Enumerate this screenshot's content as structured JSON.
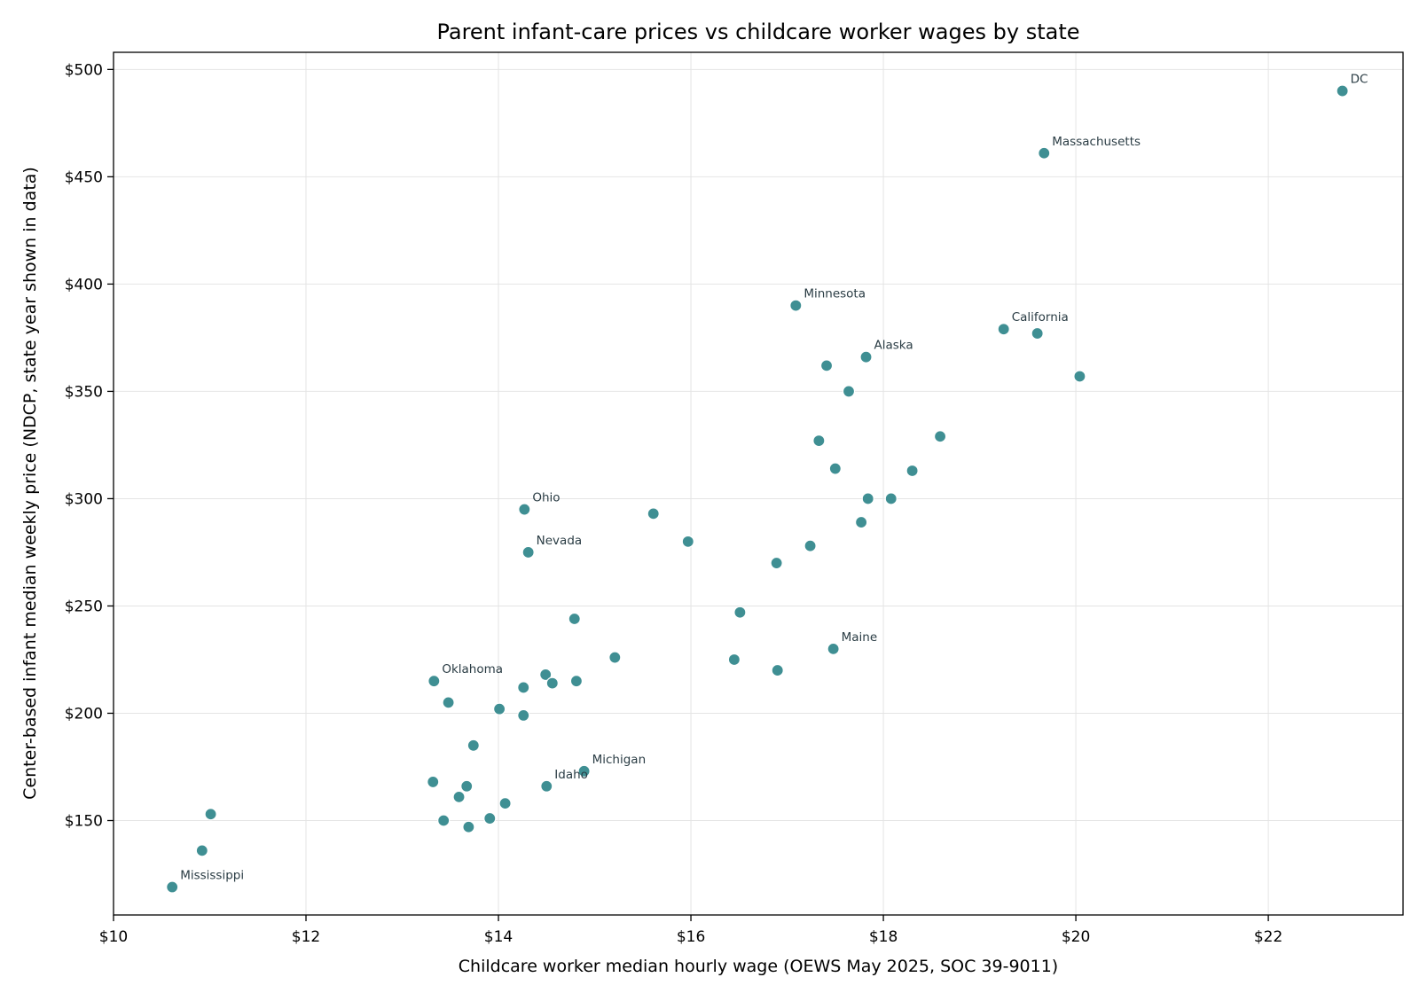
{
  "chart_data": {
    "type": "scatter",
    "title": "Parent infant-care prices vs childcare worker wages by state",
    "xlabel": "Childcare worker median hourly wage (OEWS May 2025, SOC 39-9011)",
    "ylabel": "Center-based infant median weekly price (NDCP, state year shown in data)",
    "xlim": [
      10,
      23.4
    ],
    "ylim": [
      106,
      508
    ],
    "x_ticks": [
      10,
      12,
      14,
      16,
      18,
      20,
      22
    ],
    "x_tick_labels": [
      "$10",
      "$12",
      "$14",
      "$16",
      "$18",
      "$20",
      "$22"
    ],
    "y_ticks": [
      150,
      200,
      250,
      300,
      350,
      400,
      450,
      500
    ],
    "y_tick_labels": [
      "$150",
      "$200",
      "$250",
      "$300",
      "$350",
      "$400",
      "$450",
      "$500"
    ],
    "grid": true,
    "point_color": "#3f8f93",
    "points": [
      {
        "x": 22.77,
        "y": 490,
        "label": "DC"
      },
      {
        "x": 19.67,
        "y": 461,
        "label": "Massachusetts"
      },
      {
        "x": 17.09,
        "y": 390,
        "label": "Minnesota"
      },
      {
        "x": 19.25,
        "y": 379,
        "label": "California"
      },
      {
        "x": 19.6,
        "y": 377
      },
      {
        "x": 17.82,
        "y": 366,
        "label": "Alaska"
      },
      {
        "x": 17.41,
        "y": 362
      },
      {
        "x": 20.04,
        "y": 357
      },
      {
        "x": 17.64,
        "y": 350
      },
      {
        "x": 18.59,
        "y": 329
      },
      {
        "x": 17.33,
        "y": 327
      },
      {
        "x": 17.5,
        "y": 314
      },
      {
        "x": 18.3,
        "y": 313
      },
      {
        "x": 17.84,
        "y": 300
      },
      {
        "x": 18.08,
        "y": 300
      },
      {
        "x": 14.27,
        "y": 295,
        "label": "Ohio"
      },
      {
        "x": 15.61,
        "y": 293
      },
      {
        "x": 17.77,
        "y": 289
      },
      {
        "x": 15.97,
        "y": 280
      },
      {
        "x": 17.24,
        "y": 278
      },
      {
        "x": 14.31,
        "y": 275,
        "label": "Nevada"
      },
      {
        "x": 16.89,
        "y": 270
      },
      {
        "x": 16.51,
        "y": 247
      },
      {
        "x": 14.79,
        "y": 244
      },
      {
        "x": 17.48,
        "y": 230,
        "label": "Maine"
      },
      {
        "x": 15.21,
        "y": 226
      },
      {
        "x": 16.45,
        "y": 225
      },
      {
        "x": 16.9,
        "y": 220
      },
      {
        "x": 14.49,
        "y": 218
      },
      {
        "x": 13.33,
        "y": 215,
        "label": "Oklahoma"
      },
      {
        "x": 14.81,
        "y": 215
      },
      {
        "x": 14.56,
        "y": 214
      },
      {
        "x": 14.26,
        "y": 212
      },
      {
        "x": 13.48,
        "y": 205
      },
      {
        "x": 14.01,
        "y": 202
      },
      {
        "x": 14.26,
        "y": 199
      },
      {
        "x": 13.74,
        "y": 185
      },
      {
        "x": 14.89,
        "y": 173,
        "label": "Michigan"
      },
      {
        "x": 13.32,
        "y": 168
      },
      {
        "x": 14.5,
        "y": 166,
        "label": "Idaho"
      },
      {
        "x": 13.67,
        "y": 166
      },
      {
        "x": 13.59,
        "y": 161
      },
      {
        "x": 14.07,
        "y": 158
      },
      {
        "x": 11.01,
        "y": 153
      },
      {
        "x": 13.91,
        "y": 151
      },
      {
        "x": 13.43,
        "y": 150
      },
      {
        "x": 13.69,
        "y": 147
      },
      {
        "x": 10.92,
        "y": 136
      },
      {
        "x": 10.61,
        "y": 119,
        "label": "Mississippi"
      }
    ]
  }
}
